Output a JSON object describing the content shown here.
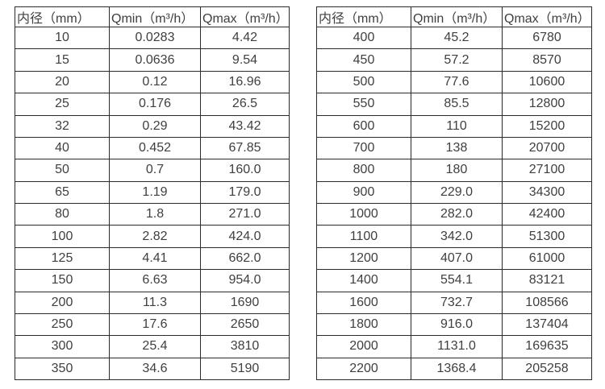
{
  "page": {
    "background_color": "#ffffff",
    "border_color": "#2b2b2b",
    "text_color": "#3f3f3f"
  },
  "tables": [
    {
      "name": "small-diameter-flow-table",
      "headers": [
        "内径（mm）",
        "Qmin（m³/h）",
        "Qmax（m³/h）"
      ],
      "rows": [
        [
          "10",
          "0.0283",
          "4.42"
        ],
        [
          "15",
          "0.0636",
          "9.54"
        ],
        [
          "20",
          "0.12",
          "16.96"
        ],
        [
          "25",
          "0.176",
          "26.5"
        ],
        [
          "32",
          "0.29",
          "43.42"
        ],
        [
          "40",
          "0.452",
          "67.85"
        ],
        [
          "50",
          "0.7",
          "160.0"
        ],
        [
          "65",
          "1.19",
          "179.0"
        ],
        [
          "80",
          "1.8",
          "271.0"
        ],
        [
          "100",
          "2.82",
          "424.0"
        ],
        [
          "125",
          "4.41",
          "662.0"
        ],
        [
          "150",
          "6.63",
          "954.0"
        ],
        [
          "200",
          "11.3",
          "1690"
        ],
        [
          "250",
          "17.6",
          "2650"
        ],
        [
          "300",
          "25.4",
          "3810"
        ],
        [
          "350",
          "34.6",
          "5190"
        ]
      ]
    },
    {
      "name": "large-diameter-flow-table",
      "headers": [
        "内径（mm）",
        "Qmin（m³/h）",
        "Qmax（m³/h）"
      ],
      "rows": [
        [
          "400",
          "45.2",
          "6780"
        ],
        [
          "450",
          "57.2",
          "8570"
        ],
        [
          "500",
          "77.6",
          "10600"
        ],
        [
          "550",
          "85.5",
          "12800"
        ],
        [
          "600",
          "110",
          "15200"
        ],
        [
          "700",
          "138",
          "20700"
        ],
        [
          "800",
          "180",
          "27100"
        ],
        [
          "900",
          "229.0",
          "34300"
        ],
        [
          "1000",
          "282.0",
          "42400"
        ],
        [
          "1100",
          "342.0",
          "51300"
        ],
        [
          "1200",
          "407.0",
          "61000"
        ],
        [
          "1400",
          "554.1",
          "83121"
        ],
        [
          "1600",
          "732.7",
          "108566"
        ],
        [
          "1800",
          "916.0",
          "137404"
        ],
        [
          "2000",
          "1131.0",
          "169635"
        ],
        [
          "2200",
          "1368.4",
          "205258"
        ]
      ]
    }
  ]
}
